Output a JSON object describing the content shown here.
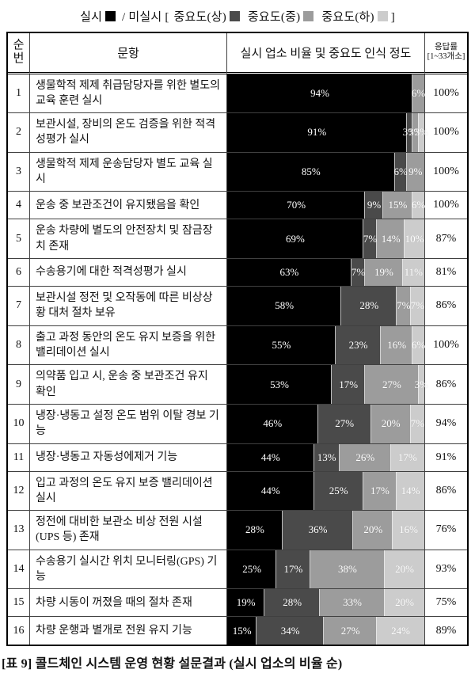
{
  "legend": {
    "implemented_label": "실시",
    "slash": "/",
    "not_implemented_prefix": "미실시 [",
    "suffix": "]",
    "items": [
      {
        "key": "high",
        "label": "중요도(상)"
      },
      {
        "key": "mid",
        "label": "중요도(중)"
      },
      {
        "key": "low",
        "label": "중요도(하)"
      }
    ]
  },
  "colors": {
    "implemented": "#000000",
    "high": "#4a4a4a",
    "mid": "#9c9c9c",
    "low": "#cccccc",
    "bar_label": "#ffffff"
  },
  "table": {
    "headers": {
      "no": "순번",
      "question": "문항",
      "bar": "실시 업소 비율 및 중요도 인식 정도",
      "response_rate": "응답률[1~33개소]"
    },
    "rows": [
      {
        "no": "1",
        "question": "생물학적 제제 취급담당자를 위한 별도의 교육 훈련 실시",
        "segments": [
          {
            "key": "implemented",
            "pct": 94,
            "label": "94%"
          },
          {
            "key": "mid",
            "pct": 6,
            "label": "6%"
          }
        ],
        "response_rate": "100%"
      },
      {
        "no": "2",
        "question": "보관시설, 장비의 온도 검증을 위한 적격성평가 실시",
        "segments": [
          {
            "key": "implemented",
            "pct": 91,
            "label": "91%"
          },
          {
            "key": "high",
            "pct": 3,
            "label": "3%"
          },
          {
            "key": "mid",
            "pct": 3,
            "label": "3%"
          },
          {
            "key": "low",
            "pct": 3,
            "label": "3%"
          }
        ],
        "response_rate": "100%"
      },
      {
        "no": "3",
        "question": "생물학적 제제 운송담당자 별도 교육 실시",
        "segments": [
          {
            "key": "implemented",
            "pct": 85,
            "label": "85%"
          },
          {
            "key": "high",
            "pct": 6,
            "label": "6%"
          },
          {
            "key": "mid",
            "pct": 9,
            "label": "9%"
          }
        ],
        "response_rate": "100%"
      },
      {
        "no": "4",
        "question": "운송 중 보관조건이 유지됐음을 확인",
        "segments": [
          {
            "key": "implemented",
            "pct": 70,
            "label": "70%"
          },
          {
            "key": "high",
            "pct": 9,
            "label": "9%"
          },
          {
            "key": "mid",
            "pct": 15,
            "label": "15%"
          },
          {
            "key": "low",
            "pct": 6,
            "label": "6%"
          }
        ],
        "response_rate": "100%"
      },
      {
        "no": "5",
        "question": "운송 차량에 별도의 안전장치 및 잠금장치 존재",
        "segments": [
          {
            "key": "implemented",
            "pct": 69,
            "label": "69%"
          },
          {
            "key": "high",
            "pct": 7,
            "label": "7%"
          },
          {
            "key": "mid",
            "pct": 14,
            "label": "14%"
          },
          {
            "key": "low",
            "pct": 10,
            "label": "10%"
          }
        ],
        "response_rate": "87%"
      },
      {
        "no": "6",
        "question": "수송용기에 대한 적격성평가 실시",
        "segments": [
          {
            "key": "implemented",
            "pct": 63,
            "label": "63%"
          },
          {
            "key": "high",
            "pct": 7,
            "label": "7%"
          },
          {
            "key": "mid",
            "pct": 19,
            "label": "19%"
          },
          {
            "key": "low",
            "pct": 11,
            "label": "11%"
          }
        ],
        "response_rate": "81%"
      },
      {
        "no": "7",
        "question": "보관시설 정전 및 오작동에 따른 비상상황 대처 절차 보유",
        "segments": [
          {
            "key": "implemented",
            "pct": 58,
            "label": "58%"
          },
          {
            "key": "high",
            "pct": 28,
            "label": "28%"
          },
          {
            "key": "mid",
            "pct": 7,
            "label": "7%"
          },
          {
            "key": "low",
            "pct": 7,
            "label": "7%"
          }
        ],
        "response_rate": "86%"
      },
      {
        "no": "8",
        "question": "출고 과정 동안의 온도 유지 보증을 위한 밸리데이션 실시",
        "segments": [
          {
            "key": "implemented",
            "pct": 55,
            "label": "55%"
          },
          {
            "key": "high",
            "pct": 23,
            "label": "23%"
          },
          {
            "key": "mid",
            "pct": 16,
            "label": "16%"
          },
          {
            "key": "low",
            "pct": 6,
            "label": "6%"
          }
        ],
        "response_rate": "100%"
      },
      {
        "no": "9",
        "question": "의약품 입고 시, 운송 중 보관조건 유지 확인",
        "segments": [
          {
            "key": "implemented",
            "pct": 53,
            "label": "53%"
          },
          {
            "key": "high",
            "pct": 17,
            "label": "17%"
          },
          {
            "key": "mid",
            "pct": 27,
            "label": "27%"
          },
          {
            "key": "low",
            "pct": 3,
            "label": "3%"
          }
        ],
        "response_rate": "86%"
      },
      {
        "no": "10",
        "question": "냉장·냉동고 설정 온도 범위 이탈 경보 기능",
        "segments": [
          {
            "key": "implemented",
            "pct": 46,
            "label": "46%"
          },
          {
            "key": "high",
            "pct": 27,
            "label": "27%"
          },
          {
            "key": "mid",
            "pct": 20,
            "label": "20%"
          },
          {
            "key": "low",
            "pct": 7,
            "label": "7%"
          }
        ],
        "response_rate": "94%"
      },
      {
        "no": "11",
        "question": "냉장·냉동고 자동성에제거 기능",
        "segments": [
          {
            "key": "implemented",
            "pct": 44,
            "label": "44%"
          },
          {
            "key": "high",
            "pct": 13,
            "label": "13%"
          },
          {
            "key": "mid",
            "pct": 26,
            "label": "26%"
          },
          {
            "key": "low",
            "pct": 17,
            "label": "17%"
          }
        ],
        "response_rate": "91%"
      },
      {
        "no": "12",
        "question": "입고 과정의 온도 유지 보증 밸리데이션 실시",
        "segments": [
          {
            "key": "implemented",
            "pct": 44,
            "label": "44%"
          },
          {
            "key": "high",
            "pct": 25,
            "label": "25%"
          },
          {
            "key": "mid",
            "pct": 17,
            "label": "17%"
          },
          {
            "key": "low",
            "pct": 14,
            "label": "14%"
          }
        ],
        "response_rate": "86%"
      },
      {
        "no": "13",
        "question": "정전에 대비한 보관소 비상 전원 시설 (UPS 등) 존재",
        "segments": [
          {
            "key": "implemented",
            "pct": 28,
            "label": "28%"
          },
          {
            "key": "high",
            "pct": 36,
            "label": "36%"
          },
          {
            "key": "mid",
            "pct": 20,
            "label": "20%"
          },
          {
            "key": "low",
            "pct": 16,
            "label": "16%"
          }
        ],
        "response_rate": "76%"
      },
      {
        "no": "14",
        "question": "수송용기 실시간 위치 모니터링(GPS) 기능",
        "segments": [
          {
            "key": "implemented",
            "pct": 25,
            "label": "25%"
          },
          {
            "key": "high",
            "pct": 17,
            "label": "17%"
          },
          {
            "key": "mid",
            "pct": 38,
            "label": "38%"
          },
          {
            "key": "low",
            "pct": 20,
            "label": "20%"
          }
        ],
        "response_rate": "93%"
      },
      {
        "no": "15",
        "question": "차량 시동이 꺼졌을 때의 절차 존재",
        "segments": [
          {
            "key": "implemented",
            "pct": 19,
            "label": "19%"
          },
          {
            "key": "high",
            "pct": 28,
            "label": "28%"
          },
          {
            "key": "mid",
            "pct": 33,
            "label": "33%"
          },
          {
            "key": "low",
            "pct": 20,
            "label": "20%"
          }
        ],
        "response_rate": "75%"
      },
      {
        "no": "16",
        "question": "차량 운행과 별개로 전원 유지 기능",
        "segments": [
          {
            "key": "implemented",
            "pct": 15,
            "label": "15%"
          },
          {
            "key": "high",
            "pct": 34,
            "label": "34%"
          },
          {
            "key": "mid",
            "pct": 27,
            "label": "27%"
          },
          {
            "key": "low",
            "pct": 24,
            "label": "24%"
          }
        ],
        "response_rate": "89%"
      }
    ]
  },
  "caption": "[표 9] 콜드체인 시스템 운영 현황 설문결과 (실시 업소의 비율 순)",
  "chart_data": {
    "type": "bar",
    "orientation": "horizontal",
    "stacked": true,
    "title": "실시 업소 비율 및 중요도 인식 정도",
    "xlim": [
      0,
      100
    ],
    "grid": false,
    "legend_position": "top",
    "categories": [
      "생물학적 제제 취급담당자를 위한 별도의 교육 훈련 실시",
      "보관시설, 장비의 온도 검증을 위한 적격성평가 실시",
      "생물학적 제제 운송담당자 별도 교육 실시",
      "운송 중 보관조건이 유지됐음을 확인",
      "운송 차량에 별도의 안전장치 및 잠금장치 존재",
      "수송용기에 대한 적격성평가 실시",
      "보관시설 정전 및 오작동에 따른 비상상황 대처 절차 보유",
      "출고 과정 동안의 온도 유지 보증을 위한 밸리데이션 실시",
      "의약품 입고 시, 운송 중 보관조건 유지 확인",
      "냉장·냉동고 설정 온도 범위 이탈 경보 기능",
      "냉장·냉동고 자동성에제거 기능",
      "입고 과정의 온도 유지 보증 밸리데이션 실시",
      "정전에 대비한 보관소 비상 전원 시설 (UPS 등) 존재",
      "수송용기 실시간 위치 모니터링(GPS) 기능",
      "차량 시동이 꺼졌을 때의 절차 존재",
      "차량 운행과 별개로 전원 유지 기능"
    ],
    "series": [
      {
        "name": "실시",
        "values": [
          94,
          91,
          85,
          70,
          69,
          63,
          58,
          55,
          53,
          46,
          44,
          44,
          28,
          25,
          19,
          15
        ]
      },
      {
        "name": "미실시 중요도(상)",
        "values": [
          0,
          3,
          6,
          9,
          7,
          7,
          28,
          23,
          17,
          27,
          13,
          25,
          36,
          17,
          28,
          34
        ]
      },
      {
        "name": "미실시 중요도(중)",
        "values": [
          6,
          3,
          9,
          15,
          14,
          19,
          7,
          16,
          27,
          20,
          26,
          17,
          20,
          38,
          33,
          27
        ]
      },
      {
        "name": "미실시 중요도(하)",
        "values": [
          0,
          3,
          0,
          6,
          10,
          11,
          7,
          6,
          3,
          7,
          17,
          14,
          16,
          20,
          20,
          24
        ]
      }
    ],
    "response_rate_column": {
      "label": "응답률[1~33개소]",
      "values": [
        "100%",
        "100%",
        "100%",
        "100%",
        "87%",
        "81%",
        "86%",
        "100%",
        "86%",
        "94%",
        "91%",
        "86%",
        "76%",
        "93%",
        "75%",
        "89%"
      ]
    }
  }
}
